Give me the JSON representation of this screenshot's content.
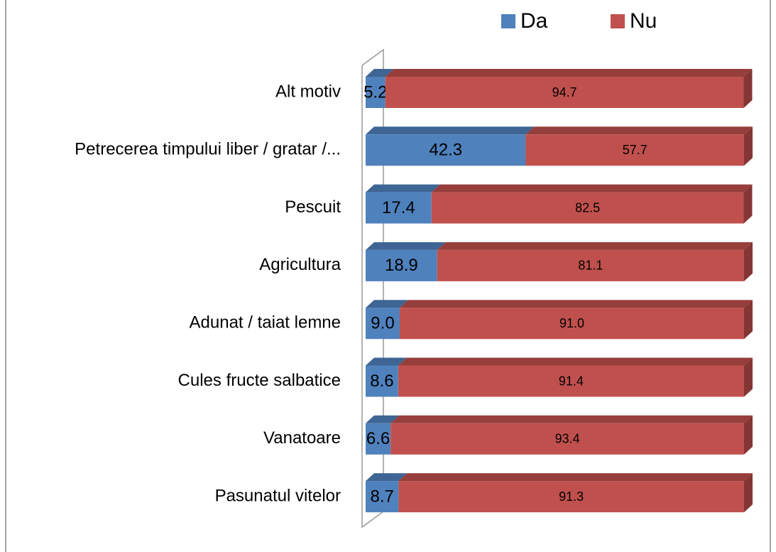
{
  "chart_data": {
    "type": "stacked-bar-3d-horizontal",
    "categories": [
      "Alt motiv",
      "Petrecerea timpului liber / gratar /...",
      "Pescuit",
      "Agricultura",
      "Adunat / taiat lemne",
      "Cules fructe salbatice",
      "Vanatoare",
      "Pasunatul vitelor"
    ],
    "series": [
      {
        "name": "Da",
        "color": "#4f81bd",
        "values": [
          5.2,
          42.3,
          17.4,
          18.9,
          9,
          8.6,
          6.6,
          8.7
        ],
        "value_labels": [
          "5.2",
          "42.3",
          "17.4",
          "18.9",
          "9.0",
          "8.6",
          "6.6",
          "8.7"
        ]
      },
      {
        "name": "Nu",
        "color": "#c0504d",
        "values": [
          94.7,
          57.7,
          82.5,
          81.1,
          91,
          91.4,
          93.4,
          91.3
        ],
        "value_labels": [
          "94.7",
          "57.7",
          "82.5",
          "81.1",
          "91.0",
          "91.4",
          "93.4",
          "91.3"
        ]
      }
    ],
    "xlim": [
      0,
      100
    ],
    "legend": "top"
  }
}
